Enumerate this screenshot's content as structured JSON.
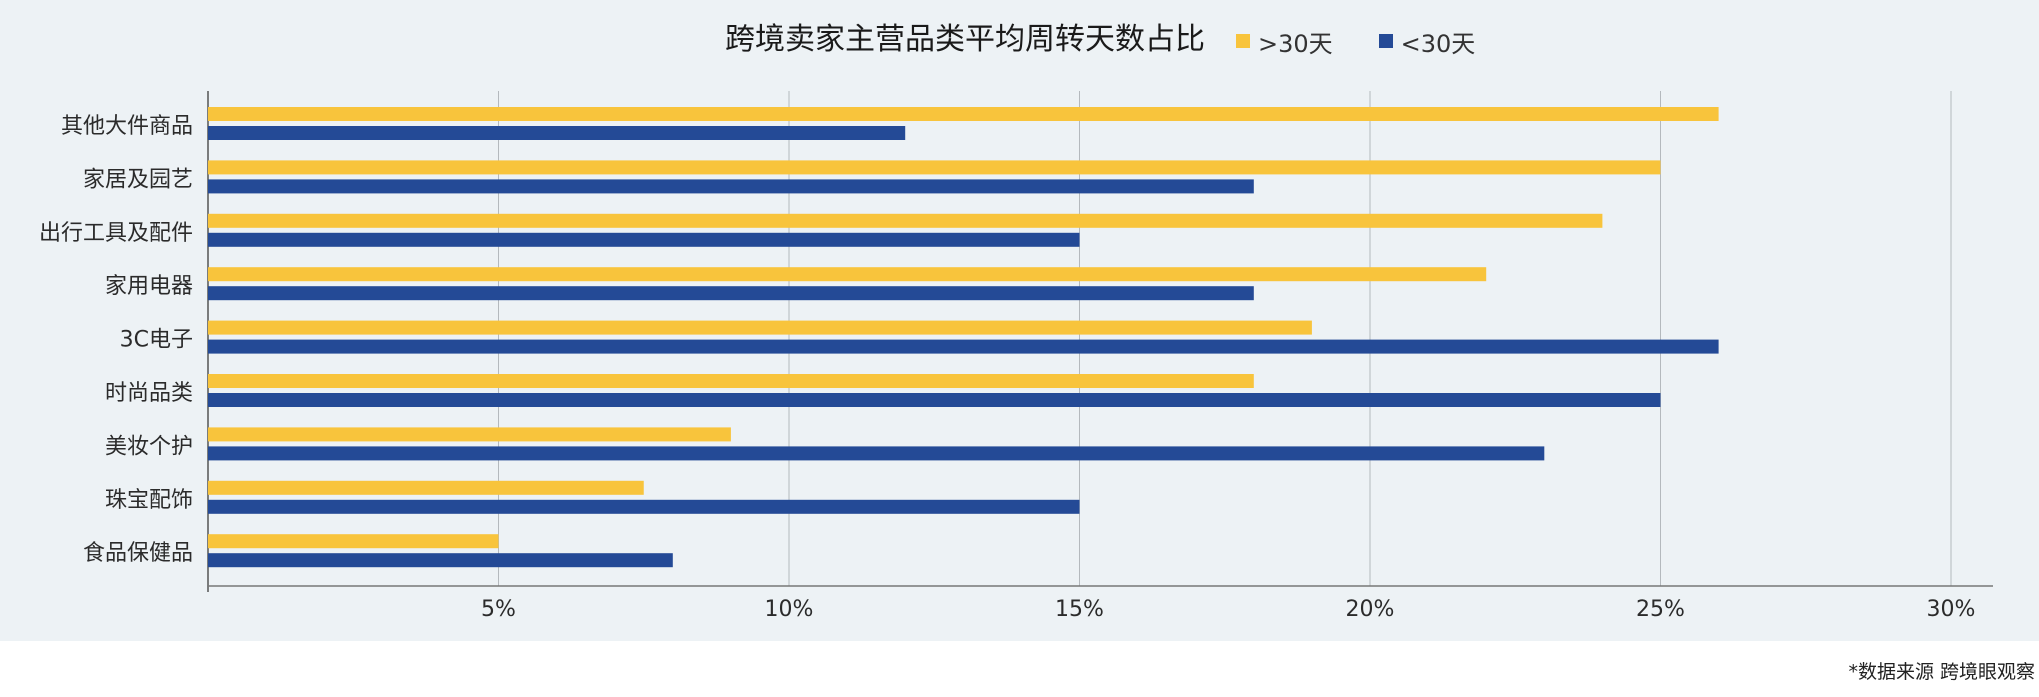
{
  "chart_data": {
    "type": "bar",
    "orientation": "horizontal",
    "title": "跨境卖家主营品类平均周转天数占比",
    "categories": [
      "其他大件商品",
      "家居及园艺",
      "出行工具及配件",
      "家用电器",
      "3C电子",
      "时尚品类",
      "美妆个护",
      "珠宝配饰",
      "食品保健品"
    ],
    "series": [
      {
        "name": ">30天",
        "color": "#f8c43c",
        "values": [
          26,
          25,
          24,
          22,
          19,
          18,
          9,
          7.5,
          5
        ]
      },
      {
        "name": "<30天",
        "color": "#244a96",
        "values": [
          12,
          18,
          15,
          18,
          26,
          25,
          23,
          15,
          8
        ]
      }
    ],
    "xlim": [
      0,
      30
    ],
    "x_ticks": [
      5,
      10,
      15,
      20,
      25,
      30
    ],
    "x_tick_labels": [
      "5%",
      "10%",
      "15%",
      "20%",
      "25%",
      "30%"
    ],
    "grid": "vertical",
    "legend_position": "top",
    "source_note": "*数据来源 跨境眼观察"
  },
  "legend": {
    "item1": ">30天",
    "item2": "<30天",
    "color1": "#f8c43c",
    "color2": "#244a96"
  }
}
